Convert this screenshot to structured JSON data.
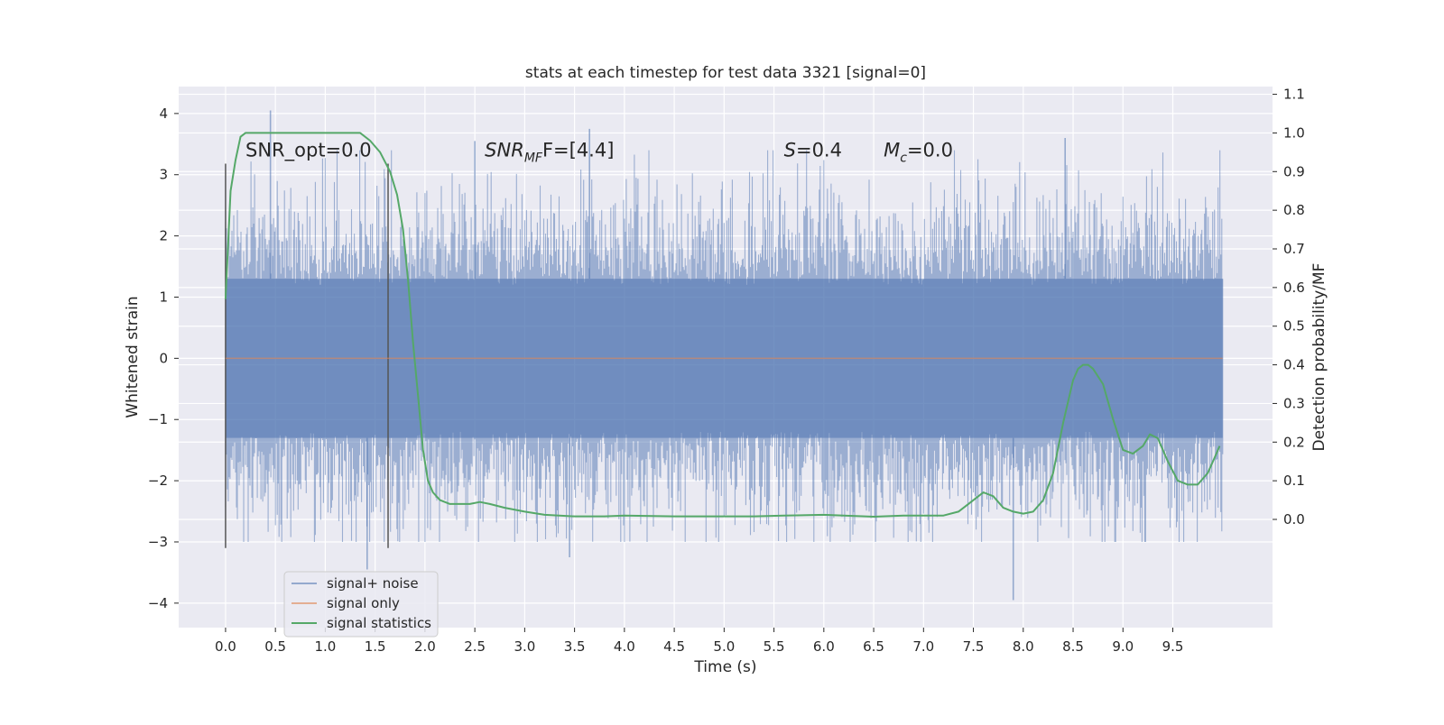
{
  "chart_data": {
    "type": "line",
    "title": "stats at each timestep for test data 3321 [signal=0]",
    "xlabel": "Time (s)",
    "ylabel": "Whitened strain",
    "ylabel_right": "Detection probability/MF",
    "xlim": [
      -0.47,
      10.5
    ],
    "ylim": [
      -4.4,
      4.44
    ],
    "ylim_right": [
      -0.28,
      1.12
    ],
    "x_ticks": [
      0.0,
      0.5,
      1.0,
      1.5,
      2.0,
      2.5,
      3.0,
      3.5,
      4.0,
      4.5,
      5.0,
      5.5,
      6.0,
      6.5,
      7.0,
      7.5,
      8.0,
      8.5,
      9.0,
      9.5
    ],
    "y_ticks": [
      -4,
      -3,
      -2,
      -1,
      0,
      1,
      2,
      3,
      4
    ],
    "y_ticks_right": [
      0.0,
      0.1,
      0.2,
      0.3,
      0.4,
      0.5,
      0.6,
      0.7,
      0.8,
      0.9,
      1.0,
      1.1
    ],
    "grid": true,
    "legend_position": "lower-left",
    "noise_envelope": {
      "x_range": [
        0.0,
        10.0
      ],
      "core": [
        -1.3,
        1.3
      ],
      "spike_high": [
        4.05,
        3.6,
        3.75,
        3.55
      ],
      "spike_low": [
        -3.95,
        -3.45,
        -3.25
      ]
    },
    "series": [
      {
        "name": "signal+ noise",
        "color": "#4c72b0",
        "alpha": 0.5,
        "style": "noise-band"
      },
      {
        "name": "signal only",
        "color": "#dd8452",
        "alpha": 0.6,
        "x": [
          0.0,
          10.0
        ],
        "y": [
          0.0,
          0.0
        ]
      },
      {
        "name": "signal statistics",
        "color": "#55a868",
        "axis": "right",
        "x": [
          0.0,
          0.05,
          0.1,
          0.15,
          0.2,
          0.3,
          0.5,
          0.8,
          1.0,
          1.2,
          1.35,
          1.45,
          1.55,
          1.65,
          1.72,
          1.78,
          1.83,
          1.88,
          1.93,
          1.98,
          2.03,
          2.08,
          2.15,
          2.25,
          2.35,
          2.45,
          2.55,
          2.65,
          2.8,
          3.0,
          3.2,
          3.5,
          3.8,
          4.0,
          4.5,
          5.0,
          5.3,
          5.6,
          6.0,
          6.2,
          6.5,
          6.8,
          7.0,
          7.2,
          7.35,
          7.45,
          7.55,
          7.6,
          7.7,
          7.8,
          7.9,
          8.0,
          8.1,
          8.2,
          8.3,
          8.4,
          8.5,
          8.55,
          8.6,
          8.65,
          8.7,
          8.8,
          8.9,
          9.0,
          9.1,
          9.2,
          9.27,
          9.35,
          9.45,
          9.55,
          9.65,
          9.75,
          9.85,
          9.92,
          9.97
        ],
        "y": [
          0.57,
          0.85,
          0.93,
          0.99,
          1.0,
          1.0,
          1.0,
          1.0,
          1.0,
          1.0,
          1.0,
          0.98,
          0.95,
          0.9,
          0.84,
          0.75,
          0.62,
          0.46,
          0.32,
          0.18,
          0.1,
          0.07,
          0.05,
          0.04,
          0.04,
          0.04,
          0.045,
          0.04,
          0.03,
          0.02,
          0.012,
          0.008,
          0.008,
          0.01,
          0.008,
          0.008,
          0.008,
          0.01,
          0.012,
          0.01,
          0.007,
          0.01,
          0.01,
          0.01,
          0.02,
          0.04,
          0.06,
          0.07,
          0.06,
          0.03,
          0.02,
          0.015,
          0.02,
          0.05,
          0.12,
          0.25,
          0.36,
          0.39,
          0.4,
          0.4,
          0.39,
          0.35,
          0.26,
          0.18,
          0.17,
          0.19,
          0.22,
          0.21,
          0.15,
          0.1,
          0.09,
          0.09,
          0.12,
          0.16,
          0.19
        ]
      }
    ],
    "vertical_markers": [
      {
        "x": 0.0,
        "ymin": -3.1,
        "ymax": 3.18
      },
      {
        "x": 1.63,
        "ymin": -3.1,
        "ymax": 3.18
      }
    ],
    "annotations": [
      {
        "text": "SNR_opt=0.0",
        "x": 0.2,
        "y": 3.3
      },
      {
        "text": "F=[4.4]",
        "math_prefix": "SNR",
        "subscript": "MF",
        "x": 2.6,
        "y": 3.3
      },
      {
        "text": "=0.4",
        "math_prefix": "S",
        "x": 5.6,
        "y": 3.3
      },
      {
        "text": "=0.0",
        "math_prefix": "M",
        "subscript": "c",
        "x": 6.6,
        "y": 3.3
      }
    ]
  },
  "colors": {
    "axes_bg": "#eaeaf2",
    "grid": "#ffffff",
    "noise": "#4c72b0",
    "signal_only": "#dd8452",
    "stats": "#55a868",
    "markers": "#555555"
  }
}
